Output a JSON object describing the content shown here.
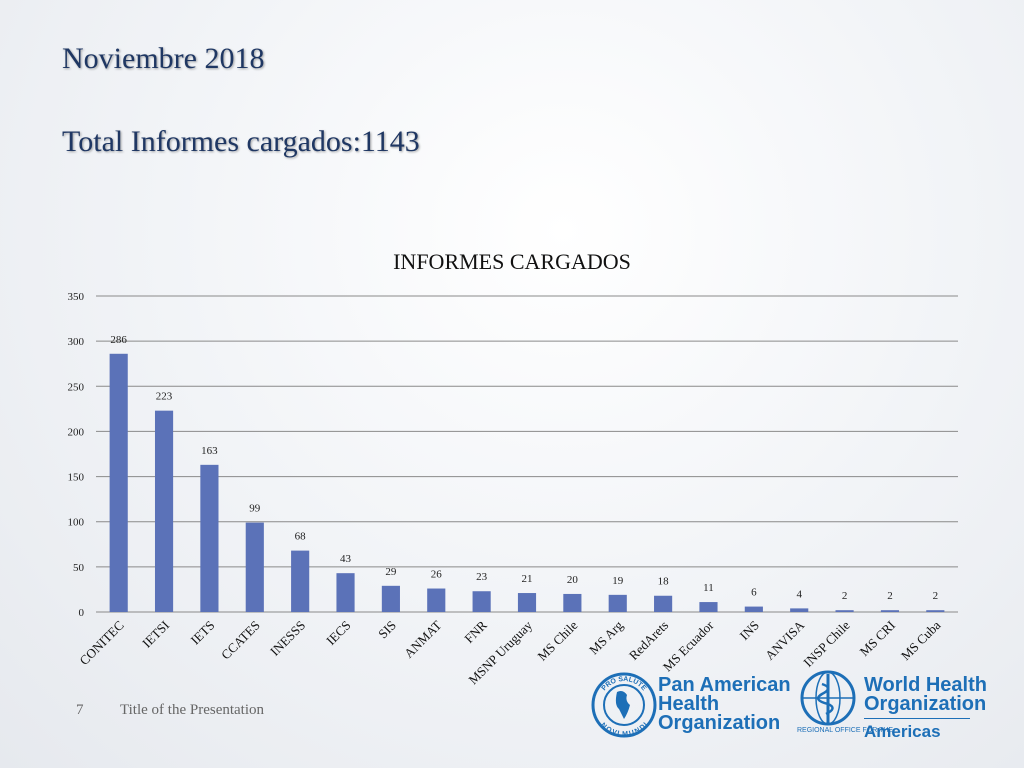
{
  "slide": {
    "title_line1": "Noviembre 2018",
    "title_line2": "Total Informes cargados:1143",
    "footer_number": "7",
    "footer_text": "Title of the Presentation"
  },
  "logos": {
    "paho_seal_top": "PRO SALUTE",
    "paho_seal_bottom": "NOVI MUNDI",
    "paho_line1": "Pan American",
    "paho_line2": "Health",
    "paho_line3": "Organization",
    "who_line1": "World Health",
    "who_line2": "Organization",
    "who_sub": "REGIONAL OFFICE FOR THE",
    "who_americas": "Americas",
    "accent_color": "#1d6fb7"
  },
  "chart_data": {
    "type": "bar",
    "title": "INFORMES CARGADOS",
    "xlabel": "",
    "ylabel": "",
    "ylim": [
      0,
      350
    ],
    "yticks": [
      0,
      50,
      100,
      150,
      200,
      250,
      300,
      350
    ],
    "grid": true,
    "legend": "none",
    "bar_color": "#5b72b8",
    "categories": [
      "CONITEC",
      "IETSI",
      "IETS",
      "CCATES",
      "INESSS",
      "IECS",
      "SIS",
      "ANMAT",
      "FNR",
      "MSNP Uruguay",
      "MS Chile",
      "MS Arg",
      "RedArets",
      "MS Ecuador",
      "INS",
      "ANVISA",
      "INSP Chile",
      "MS CRI",
      "MS Cuba"
    ],
    "values": [
      286,
      223,
      163,
      99,
      68,
      43,
      29,
      26,
      23,
      21,
      20,
      19,
      18,
      11,
      6,
      4,
      2,
      2,
      2
    ]
  }
}
